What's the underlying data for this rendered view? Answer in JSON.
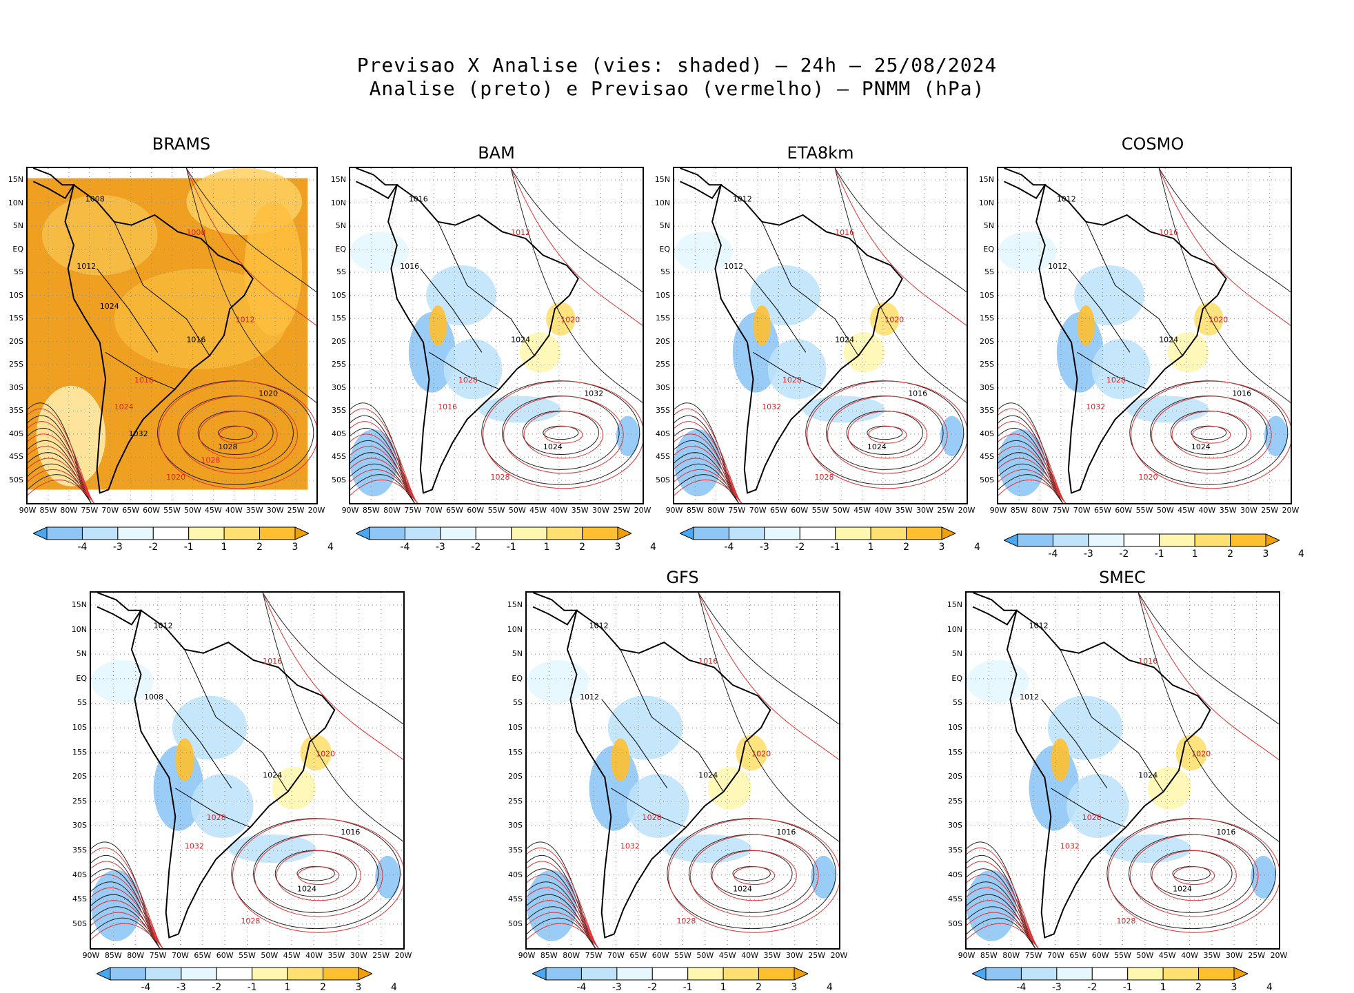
{
  "title": {
    "line1": "Previsao X Analise (vies: shaded) — 24h — 25/08/2024",
    "line2": "Analise (preto) e Previsao (vermelho) — PNMM (hPa)"
  },
  "lat_labels": [
    "15N",
    "10N",
    "5N",
    "EQ",
    "5S",
    "10S",
    "15S",
    "20S",
    "25S",
    "30S",
    "35S",
    "40S",
    "45S",
    "50S"
  ],
  "lon_labels": [
    "90W",
    "85W",
    "80W",
    "75W",
    "70W",
    "65W",
    "60W",
    "55W",
    "50W",
    "45W",
    "40W",
    "35W",
    "30W",
    "25W",
    "20W"
  ],
  "colorbar_labels": [
    "-4",
    "-3",
    "-2",
    "-1",
    "1",
    "2",
    "3",
    "4"
  ],
  "colorbar_colors": [
    "#4aa8f0",
    "#8ec6f5",
    "#bfe3fb",
    "#e6f7ff",
    "#ffffff",
    "#fff7b0",
    "#ffe070",
    "#ffc030",
    "#f0a000"
  ],
  "panels": [
    {
      "name": "BRAMS",
      "contours": [
        "1008",
        "1008",
        "1012",
        "1012",
        "1016",
        "1016",
        "1020",
        "1024",
        "1028",
        "1020",
        "1024",
        "1028",
        "1032"
      ]
    },
    {
      "name": "BAM",
      "contours": [
        "1016",
        "1012",
        "1016",
        "1020",
        "1024",
        "1028",
        "1032",
        "1016",
        "1024",
        "1028"
      ]
    },
    {
      "name": "ETA8km",
      "contours": [
        "1012",
        "1016",
        "1012",
        "1020",
        "1024",
        "1028",
        "1016",
        "1032",
        "1024",
        "1028"
      ]
    },
    {
      "name": "COSMO",
      "contours": [
        "1012",
        "1016",
        "1012",
        "1020",
        "1024",
        "1028",
        "1016",
        "1032",
        "1024",
        "1020"
      ]
    },
    {
      "name": "",
      "contours": [
        "1012",
        "1016",
        "1008",
        "1020",
        "1024",
        "1028",
        "1016",
        "1032",
        "1024",
        "1028"
      ]
    },
    {
      "name": "GFS",
      "contours": [
        "1012",
        "1016",
        "1012",
        "1020",
        "1024",
        "1028",
        "1016",
        "1032",
        "1024",
        "1028"
      ]
    },
    {
      "name": "SMEC",
      "contours": [
        "1012",
        "1016",
        "1012",
        "1020",
        "1024",
        "1028",
        "1016",
        "1032",
        "1024",
        "1028"
      ]
    }
  ]
}
